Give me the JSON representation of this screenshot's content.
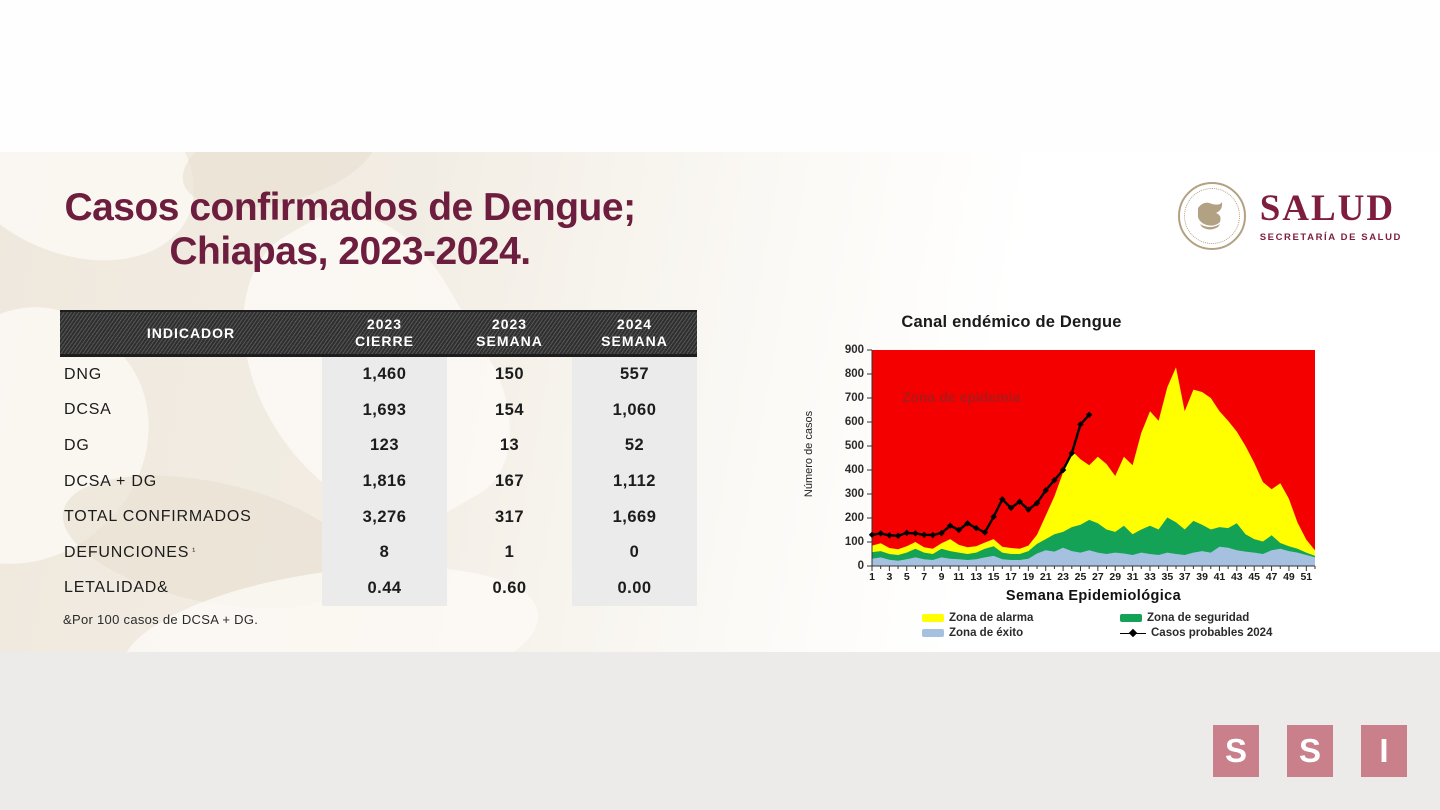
{
  "slide": {
    "title_line1": "Casos confirmados de Dengue;",
    "title_line2": "Chiapas, 2023-2024.",
    "footnote": "&Por 100 casos de DCSA + DG."
  },
  "logo": {
    "name": "SALUD",
    "subtitle": "SECRETARÍA DE SALUD"
  },
  "table": {
    "headers": {
      "indicator": "INDICADOR",
      "col2_top": "2023",
      "col2_bottom": "CIERRE",
      "col3_top": "2023",
      "col3_bottom": "SEMANA",
      "col4_top": "2024",
      "col4_bottom": "SEMANA"
    },
    "rows": [
      {
        "label": "DNG",
        "sup": "",
        "values": [
          "1,460",
          "150",
          "557"
        ]
      },
      {
        "label": "DCSA",
        "sup": "",
        "values": [
          "1,693",
          "154",
          "1,060"
        ]
      },
      {
        "label": "DG",
        "sup": "",
        "values": [
          "123",
          "13",
          "52"
        ]
      },
      {
        "label": "DCSA + DG",
        "sup": "",
        "values": [
          "1,816",
          "167",
          "1,112"
        ]
      },
      {
        "label": "TOTAL CONFIRMADOS",
        "sup": "",
        "values": [
          "3,276",
          "317",
          "1,669"
        ]
      },
      {
        "label": "DEFUNCIONES",
        "sup": "¹",
        "values": [
          "8",
          "1",
          "0"
        ]
      },
      {
        "label": "LETALIDAD&",
        "sup": "",
        "values": [
          "0.44",
          "0.60",
          "0.00"
        ]
      }
    ]
  },
  "chart_data": {
    "type": "area+line",
    "title": "Canal endémico de Dengue",
    "xlabel": "Semana Epidemiológica",
    "ylabel": "Número de casos",
    "ylim": [
      0,
      900
    ],
    "ytick_step": 100,
    "xticks": [
      1,
      3,
      5,
      7,
      9,
      11,
      13,
      15,
      17,
      19,
      21,
      23,
      25,
      27,
      29,
      31,
      33,
      35,
      37,
      39,
      41,
      43,
      45,
      47,
      49,
      51
    ],
    "weeks": 52,
    "background_zone": {
      "label": "Zona de epidemia",
      "color": "#f40000",
      "label_color": "#ab1a1a"
    },
    "series": [
      {
        "name": "Zona de alarma",
        "type": "area",
        "color": "#ffff00",
        "values": [
          85,
          95,
          75,
          70,
          82,
          100,
          78,
          72,
          95,
          112,
          88,
          78,
          82,
          98,
          112,
          80,
          75,
          72,
          85,
          130,
          210,
          290,
          390,
          480,
          445,
          420,
          455,
          425,
          375,
          455,
          420,
          555,
          645,
          605,
          745,
          828,
          645,
          735,
          725,
          700,
          645,
          605,
          560,
          500,
          430,
          350,
          320,
          345,
          280,
          180,
          110,
          65
        ]
      },
      {
        "name": "Zona de seguridad",
        "type": "area",
        "color": "#14a356",
        "values": [
          58,
          62,
          50,
          46,
          56,
          72,
          56,
          50,
          72,
          62,
          56,
          50,
          56,
          72,
          82,
          56,
          50,
          50,
          62,
          92,
          112,
          132,
          142,
          162,
          172,
          192,
          178,
          152,
          142,
          168,
          132,
          152,
          168,
          152,
          202,
          182,
          152,
          188,
          172,
          152,
          162,
          158,
          178,
          132,
          112,
          102,
          128,
          96,
          82,
          72,
          56,
          42
        ]
      },
      {
        "name": "Zona de éxito",
        "type": "area",
        "color": "#a5c1df",
        "values": [
          30,
          36,
          26,
          22,
          28,
          36,
          28,
          25,
          36,
          30,
          28,
          25,
          28,
          36,
          42,
          28,
          25,
          25,
          30,
          52,
          66,
          60,
          76,
          62,
          56,
          66,
          56,
          50,
          56,
          52,
          46,
          56,
          50,
          46,
          56,
          50,
          46,
          56,
          62,
          56,
          80,
          76,
          66,
          60,
          56,
          50,
          66,
          72,
          62,
          56,
          46,
          36
        ]
      },
      {
        "name": "Casos probables 2024",
        "type": "line",
        "color": "#000000",
        "values": [
          130,
          136,
          128,
          126,
          138,
          136,
          130,
          129,
          137,
          168,
          150,
          178,
          158,
          140,
          205,
          278,
          242,
          268,
          235,
          262,
          315,
          358,
          400,
          470,
          590,
          630
        ]
      }
    ],
    "legend": [
      {
        "label": "Zona de alarma",
        "swatch": "area",
        "color": "#ffff00"
      },
      {
        "label": "Zona de seguridad",
        "swatch": "area",
        "color": "#14a356"
      },
      {
        "label": "Zona de éxito",
        "swatch": "area",
        "color": "#a5c1df"
      },
      {
        "label": "Casos probables 2024",
        "swatch": "line",
        "color": "#000000"
      }
    ]
  },
  "footer": {
    "letters": [
      "S",
      "S",
      "I"
    ]
  }
}
